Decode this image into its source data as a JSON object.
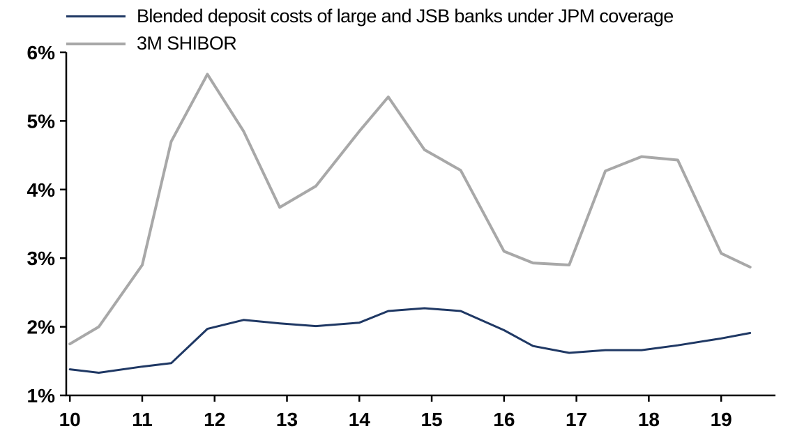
{
  "chart_data": {
    "type": "line",
    "title": "",
    "xlabel": "",
    "ylabel": "",
    "grid": false,
    "legend_position": "top-left",
    "axis_color": "#000000",
    "xlim": [
      9.95,
      19.75
    ],
    "ylim": [
      1,
      6
    ],
    "x": [
      10.0,
      10.4,
      11.0,
      11.4,
      11.9,
      12.4,
      12.9,
      13.4,
      14.0,
      14.4,
      14.9,
      15.4,
      16.0,
      16.4,
      16.9,
      17.4,
      17.9,
      18.4,
      19.0,
      19.4
    ],
    "series": [
      {
        "name": "Blended deposit costs of large and JSB banks under JPM coverage",
        "color": "#1F3864",
        "line_width": 3,
        "values": [
          1.38,
          1.33,
          1.42,
          1.47,
          1.97,
          2.1,
          2.05,
          2.01,
          2.06,
          2.23,
          2.27,
          2.23,
          1.95,
          1.72,
          1.62,
          1.66,
          1.66,
          1.73,
          1.83,
          1.91
        ]
      },
      {
        "name": "3M SHIBOR",
        "color": "#A8A8A8",
        "line_width": 4,
        "values": [
          1.75,
          2.0,
          2.9,
          4.7,
          5.68,
          4.85,
          3.74,
          4.05,
          4.85,
          5.35,
          4.58,
          4.28,
          3.1,
          2.93,
          2.9,
          4.27,
          4.48,
          4.43,
          3.07,
          2.87
        ]
      }
    ],
    "xticks": {
      "values": [
        10,
        11,
        12,
        13,
        14,
        15,
        16,
        17,
        18,
        19
      ],
      "labels": [
        "10",
        "11",
        "12",
        "13",
        "14",
        "15",
        "16",
        "17",
        "18",
        "19"
      ]
    },
    "yticks": {
      "values": [
        1,
        2,
        3,
        4,
        5,
        6
      ],
      "labels": [
        "1%",
        "2%",
        "3%",
        "4%",
        "5%",
        "6%"
      ]
    }
  }
}
